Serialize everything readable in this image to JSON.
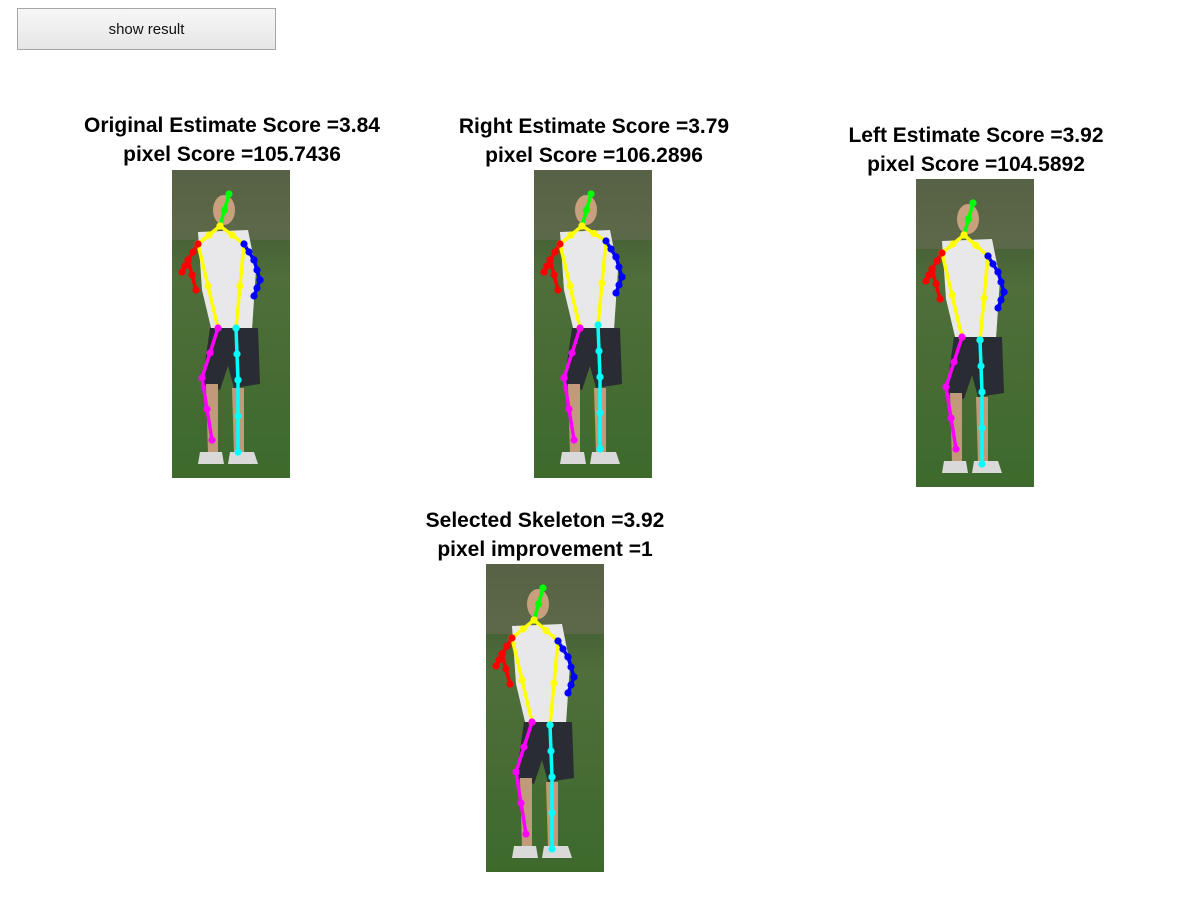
{
  "button": {
    "label": "show result"
  },
  "panels": {
    "original": {
      "line1": "Original Estimate Score =3.84",
      "line2": "pixel Score =105.7436"
    },
    "right": {
      "line1": "Right Estimate Score =3.79",
      "line2": "pixel Score =106.2896"
    },
    "left": {
      "line1": "Left Estimate Score =3.92",
      "line2": "pixel Score =104.5892"
    },
    "selected": {
      "line1": "Selected Skeleton =3.92",
      "line2": "pixel improvement =1"
    }
  },
  "skeleton_colors": {
    "head": "#00ff00",
    "torso": "#ffff00",
    "right_arm": "#ff0000",
    "left_arm": "#0000ff",
    "right_leg": "#ff00ff",
    "left_leg": "#00ffff"
  }
}
